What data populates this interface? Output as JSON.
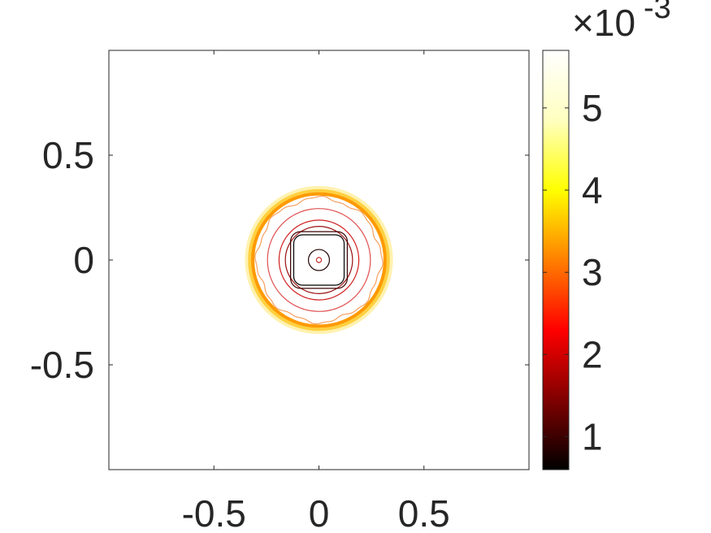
{
  "chart_data": {
    "type": "contour",
    "title": "",
    "xlabel": "",
    "ylabel": "",
    "xlim": [
      -1,
      1
    ],
    "ylim": [
      -1,
      1
    ],
    "xticks": [
      -0.5,
      0,
      0.5
    ],
    "xtick_labels": [
      "-0.5",
      "0",
      "0.5"
    ],
    "yticks": [
      -0.5,
      0,
      0.5
    ],
    "ytick_labels": [
      "-0.5",
      "0",
      "0.5"
    ],
    "grid": false,
    "colormap": "hot",
    "colorbar": {
      "range": [
        0.0006,
        0.0057
      ],
      "ticks": [
        0.001,
        0.002,
        0.003,
        0.004,
        0.005
      ],
      "tick_labels": [
        "1",
        "2",
        "3",
        "4",
        "5"
      ],
      "exponent_label": "×10",
      "exponent_power": "-3",
      "colors": [
        "#000000",
        "#800000",
        "#ff0000",
        "#ff8000",
        "#ffff00",
        "#ffffc0",
        "#ffffff"
      ]
    },
    "contours": [
      {
        "level": 0.0057,
        "radius": 0.36,
        "color": "#ffffff",
        "shape": "circle"
      },
      {
        "level": 0.0048,
        "radius": 0.345,
        "color": "#fff2b0",
        "shape": "circle"
      },
      {
        "level": 0.0044,
        "radius": 0.33,
        "color": "#ffd040",
        "shape": "circle"
      },
      {
        "level": 0.004,
        "radius": 0.315,
        "color": "#ff9a00",
        "shape": "circle"
      },
      {
        "level": 0.0036,
        "radius": 0.295,
        "color": "#f5a060",
        "shape": "wavy"
      },
      {
        "level": 0.0032,
        "radius": 0.245,
        "color": "#e05050",
        "shape": "circle"
      },
      {
        "level": 0.0028,
        "radius": 0.19,
        "color": "#d02020",
        "shape": "circle"
      },
      {
        "level": 0.0024,
        "radius": 0.16,
        "color": "#9a1010",
        "shape": "circle"
      },
      {
        "level": 0.0019,
        "radius": 0.135,
        "color": "#3a0000",
        "shape": "square"
      },
      {
        "level": 0.0015,
        "radius": 0.12,
        "color": "#000000",
        "shape": "square"
      },
      {
        "level": 0.001,
        "radius": 0.05,
        "color": "#200000",
        "shape": "circle"
      },
      {
        "level": 0.0022,
        "radius": 0.012,
        "color": "#c03030",
        "shape": "circle"
      }
    ]
  }
}
